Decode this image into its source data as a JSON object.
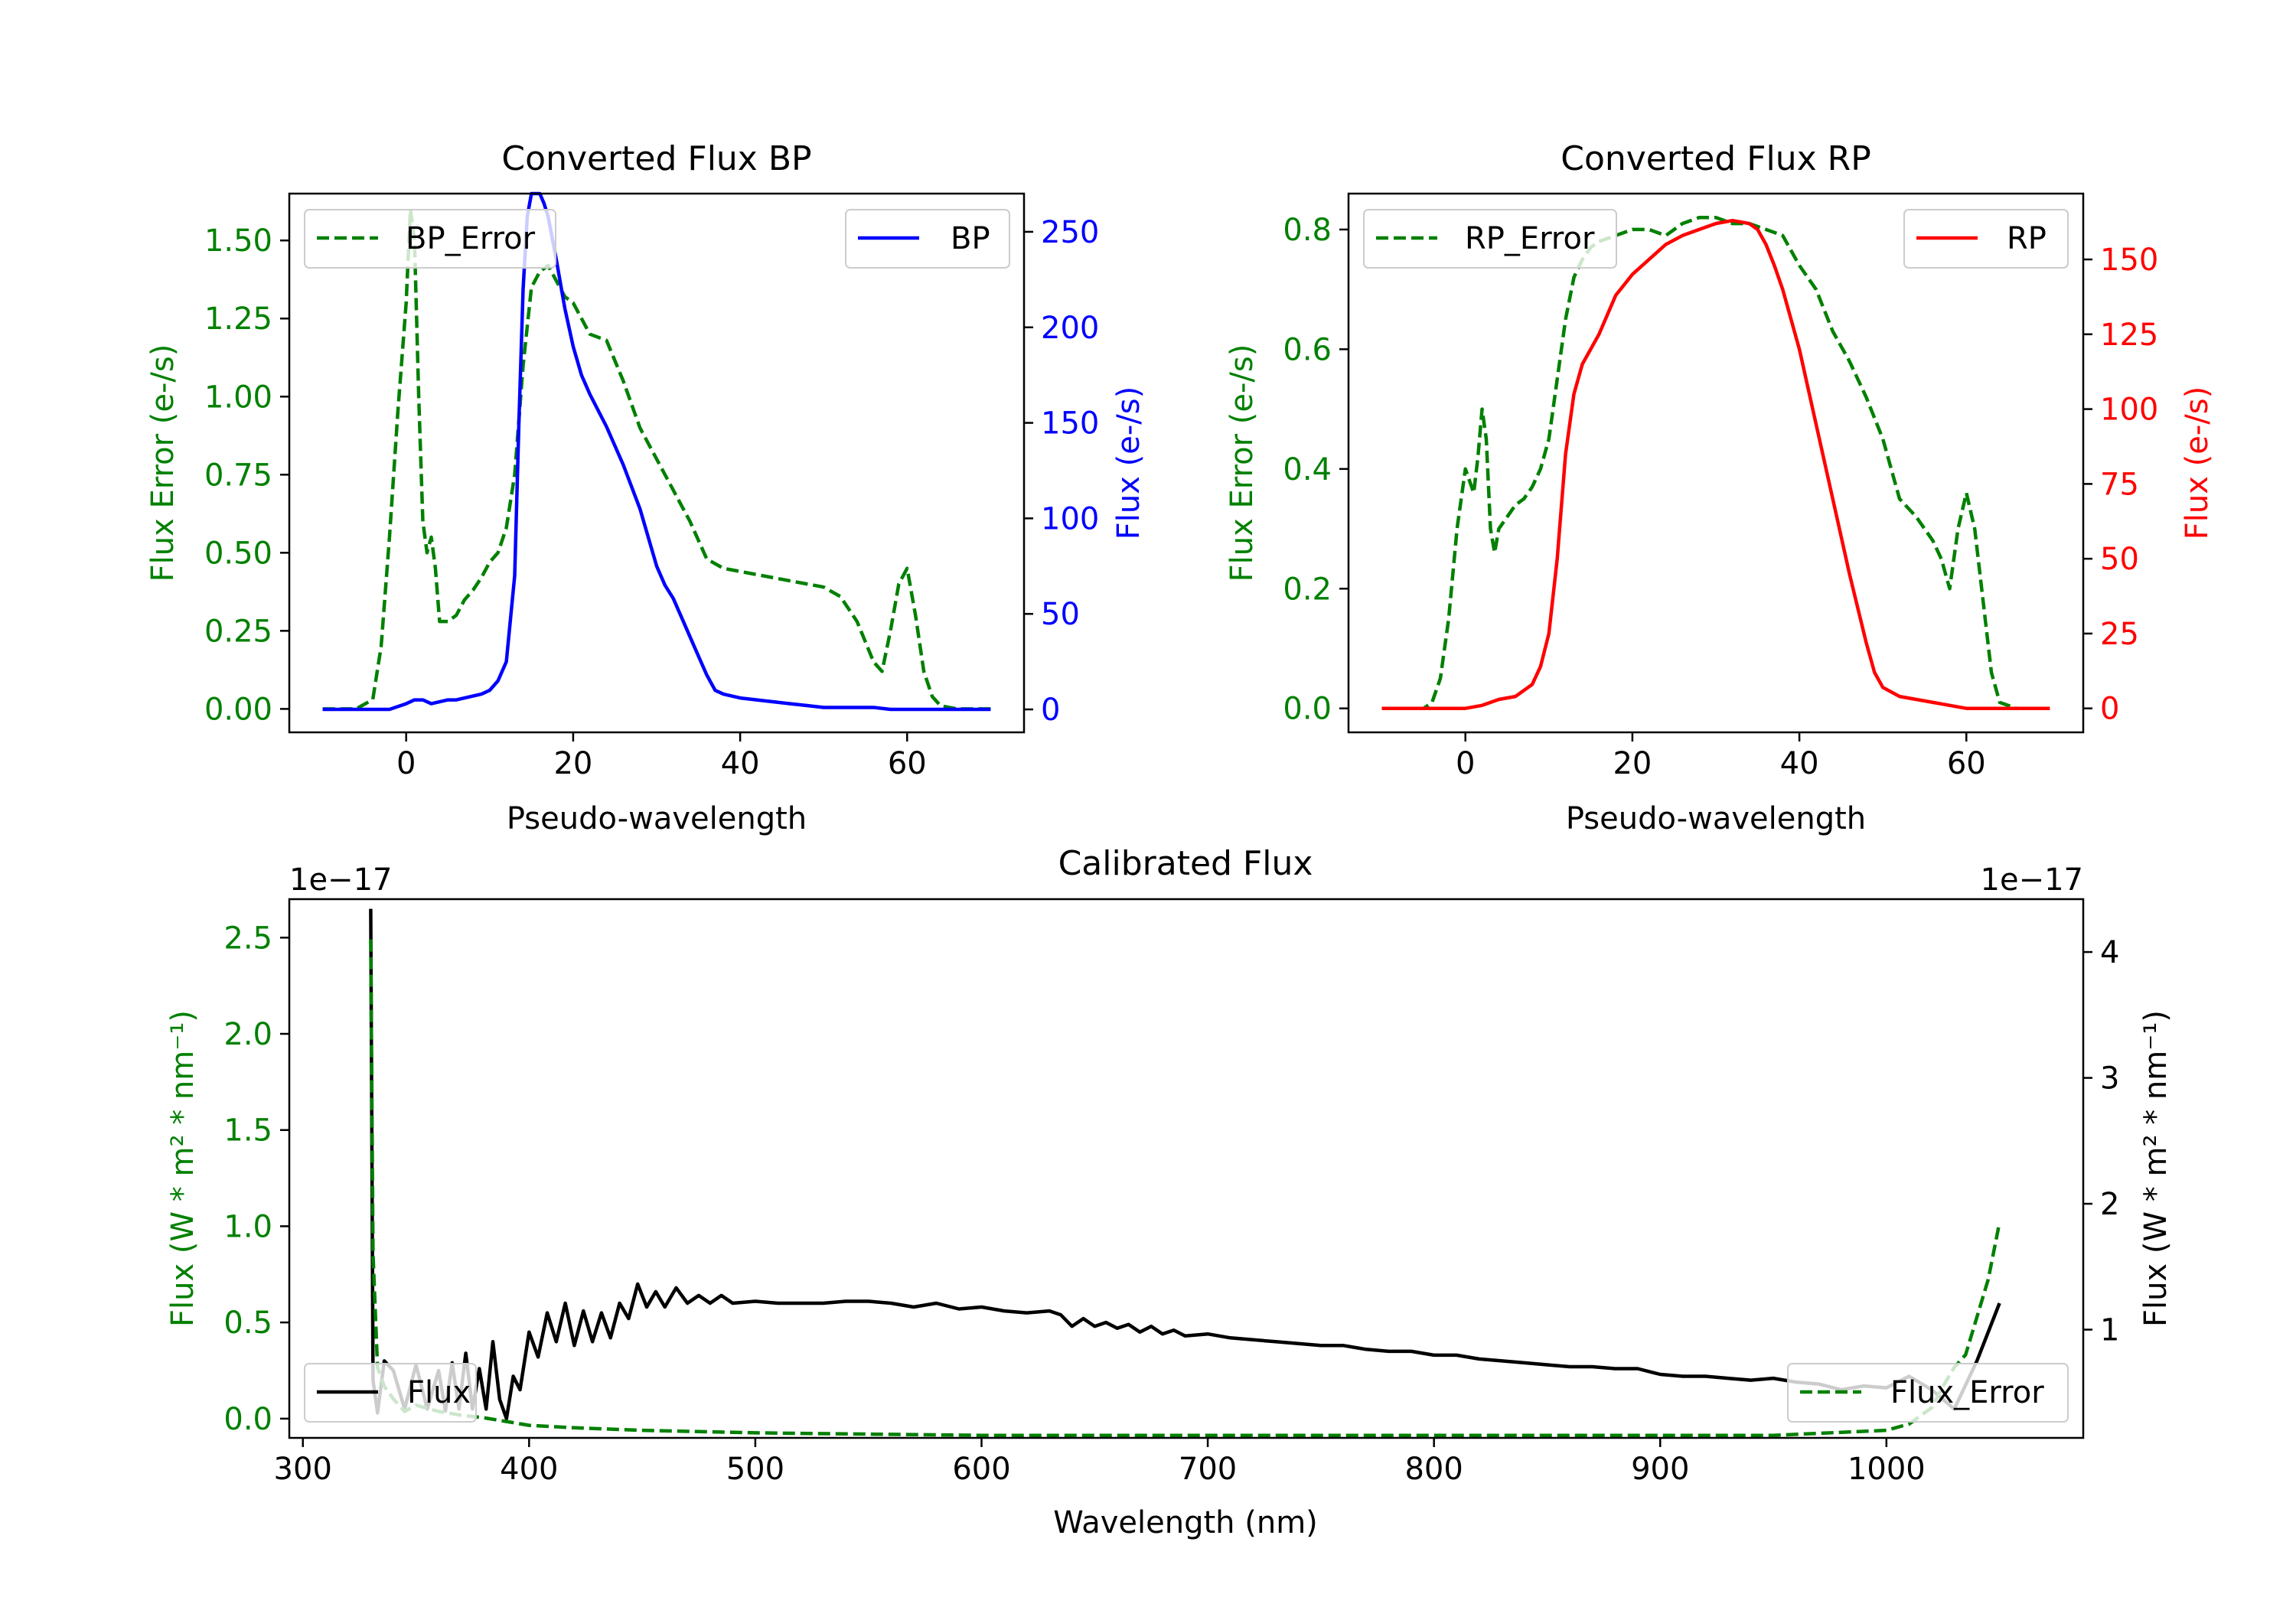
{
  "colors": {
    "green": "#008000",
    "blue": "#0000ff",
    "red": "#ff0000",
    "black": "#000000"
  },
  "chart_data": [
    {
      "id": "bp",
      "type": "line",
      "title": "Converted Flux BP",
      "xlabel": "Pseudo-wavelength",
      "ylabel_left": "Flux Error (e-/s)",
      "ylabel_right": "Flux (e-/s)",
      "xlim": [
        -14,
        74
      ],
      "ylim_left": [
        -0.075,
        1.65
      ],
      "ylim_right": [
        -12,
        270
      ],
      "xticks": [
        0,
        20,
        40,
        60
      ],
      "xtick_labels": [
        "0",
        "20",
        "40",
        "60"
      ],
      "yticks_left": [
        0,
        0.25,
        0.5,
        0.75,
        1.0,
        1.25,
        1.5
      ],
      "ytick_labels_left": [
        "0.00",
        "0.25",
        "0.50",
        "0.75",
        "1.00",
        "1.25",
        "1.50"
      ],
      "yticks_right": [
        0,
        50,
        100,
        150,
        200,
        250
      ],
      "ytick_labels_right": [
        "0",
        "50",
        "100",
        "150",
        "200",
        "250"
      ],
      "series": [
        {
          "name": "BP_Error",
          "axis": "left",
          "style": "dashed",
          "color": "#008000",
          "x": [
            -10,
            -6,
            -4,
            -3,
            -2,
            -1,
            0,
            0.5,
            1,
            1.5,
            2,
            2.5,
            3,
            3.5,
            4,
            5,
            6,
            7,
            8,
            9,
            10,
            11,
            12,
            13,
            14,
            15,
            16,
            17,
            18,
            19,
            20,
            21,
            22,
            24,
            26,
            28,
            30,
            32,
            34,
            36,
            38,
            40,
            42,
            44,
            46,
            48,
            50,
            52,
            54,
            56,
            57,
            58,
            59,
            60,
            61,
            62,
            63,
            64,
            66,
            68,
            70
          ],
          "y": [
            0.0,
            0.0,
            0.03,
            0.2,
            0.55,
            0.95,
            1.3,
            1.6,
            1.5,
            1.0,
            0.6,
            0.5,
            0.55,
            0.45,
            0.28,
            0.28,
            0.3,
            0.35,
            0.38,
            0.42,
            0.47,
            0.5,
            0.58,
            0.75,
            1.1,
            1.35,
            1.4,
            1.42,
            1.37,
            1.32,
            1.3,
            1.25,
            1.2,
            1.18,
            1.05,
            0.9,
            0.8,
            0.7,
            0.6,
            0.48,
            0.45,
            0.44,
            0.43,
            0.42,
            0.41,
            0.4,
            0.39,
            0.36,
            0.28,
            0.15,
            0.12,
            0.25,
            0.4,
            0.45,
            0.3,
            0.12,
            0.04,
            0.01,
            0.0,
            0.0,
            0.0
          ]
        },
        {
          "name": "BP",
          "axis": "right",
          "style": "solid",
          "color": "#0000ff",
          "x": [
            -10,
            -4,
            -2,
            0,
            1,
            2,
            3,
            4,
            5,
            6,
            7,
            8,
            9,
            10,
            11,
            12,
            13,
            13.5,
            14,
            14.5,
            15,
            16,
            16.5,
            17,
            18,
            19,
            20,
            21,
            22,
            24,
            26,
            28,
            29,
            30,
            31,
            32,
            33,
            34,
            35,
            36,
            37,
            38,
            40,
            42,
            44,
            46,
            48,
            50,
            52,
            54,
            56,
            58,
            60,
            62,
            64,
            66,
            68,
            70
          ],
          "y": [
            0,
            0,
            0,
            3,
            5,
            5,
            3,
            4,
            5,
            5,
            6,
            7,
            8,
            10,
            15,
            25,
            70,
            150,
            220,
            258,
            270,
            270,
            265,
            258,
            235,
            210,
            190,
            175,
            165,
            148,
            128,
            105,
            90,
            75,
            65,
            58,
            48,
            38,
            28,
            18,
            10,
            8,
            6,
            5,
            4,
            3,
            2,
            1,
            1,
            1,
            1,
            0,
            0,
            0,
            0,
            0,
            0,
            0
          ]
        }
      ],
      "legend": [
        {
          "label": "BP_Error",
          "position": "upper-left"
        },
        {
          "label": "BP",
          "position": "upper-right"
        }
      ]
    },
    {
      "id": "rp",
      "type": "line",
      "title": "Converted Flux RP",
      "xlabel": "Pseudo-wavelength",
      "ylabel_left": "Flux Error (e-/s)",
      "ylabel_right": "Flux (e-/s)",
      "xlim": [
        -14,
        74
      ],
      "ylim_left": [
        -0.04,
        0.86
      ],
      "ylim_right": [
        -8,
        172
      ],
      "xticks": [
        0,
        20,
        40,
        60
      ],
      "xtick_labels": [
        "0",
        "20",
        "40",
        "60"
      ],
      "yticks_left": [
        0,
        0.2,
        0.4,
        0.6,
        0.8
      ],
      "ytick_labels_left": [
        "0.0",
        "0.2",
        "0.4",
        "0.6",
        "0.8"
      ],
      "yticks_right": [
        0,
        25,
        50,
        75,
        100,
        125,
        150
      ],
      "ytick_labels_right": [
        "0",
        "25",
        "50",
        "75",
        "100",
        "125",
        "150"
      ],
      "series": [
        {
          "name": "RP_Error",
          "axis": "left",
          "style": "dashed",
          "color": "#008000",
          "x": [
            -10,
            -5,
            -4,
            -3,
            -2,
            -1,
            0,
            0.5,
            1,
            1.5,
            2,
            2.5,
            3,
            3.5,
            4,
            5,
            6,
            7,
            8,
            9,
            10,
            11,
            12,
            13,
            14,
            15,
            16,
            18,
            20,
            22,
            24,
            26,
            28,
            30,
            32,
            34,
            36,
            38,
            40,
            42,
            44,
            46,
            48,
            50,
            52,
            54,
            56,
            57,
            58,
            59,
            60,
            61,
            62,
            63,
            64,
            66,
            68,
            70
          ],
          "y": [
            0.0,
            0.0,
            0.01,
            0.05,
            0.15,
            0.3,
            0.4,
            0.38,
            0.36,
            0.42,
            0.5,
            0.45,
            0.3,
            0.26,
            0.3,
            0.32,
            0.34,
            0.35,
            0.37,
            0.4,
            0.45,
            0.55,
            0.65,
            0.72,
            0.75,
            0.77,
            0.78,
            0.79,
            0.8,
            0.8,
            0.79,
            0.81,
            0.82,
            0.82,
            0.81,
            0.81,
            0.8,
            0.79,
            0.74,
            0.7,
            0.63,
            0.58,
            0.52,
            0.45,
            0.35,
            0.32,
            0.28,
            0.25,
            0.2,
            0.3,
            0.36,
            0.3,
            0.18,
            0.06,
            0.01,
            0.0,
            0.0,
            0.0
          ]
        },
        {
          "name": "RP",
          "axis": "right",
          "style": "solid",
          "color": "#ff0000",
          "x": [
            -10,
            -4,
            -2,
            0,
            2,
            4,
            6,
            8,
            9,
            10,
            11,
            12,
            13,
            14,
            16,
            18,
            20,
            22,
            24,
            26,
            28,
            30,
            32,
            34,
            35,
            36,
            37,
            38,
            40,
            42,
            44,
            46,
            48,
            49,
            50,
            52,
            54,
            56,
            58,
            60,
            62,
            64,
            66,
            68,
            70
          ],
          "y": [
            0,
            0,
            0,
            0,
            1,
            3,
            4,
            8,
            14,
            25,
            50,
            85,
            105,
            115,
            125,
            138,
            145,
            150,
            155,
            158,
            160,
            162,
            163,
            162,
            160,
            155,
            148,
            140,
            120,
            95,
            70,
            45,
            22,
            12,
            7,
            4,
            3,
            2,
            1,
            0,
            0,
            0,
            0,
            0,
            0
          ]
        }
      ],
      "legend": [
        {
          "label": "RP_Error",
          "position": "upper-left"
        },
        {
          "label": "RP",
          "position": "upper-right"
        }
      ]
    },
    {
      "id": "cal",
      "type": "line",
      "title": "Calibrated Flux",
      "xlabel": "Wavelength (nm)",
      "ylabel_left": "Flux (W * m² * nm⁻¹)",
      "ylabel_right": "Flux (W * m² * nm⁻¹)",
      "offset_left": "1e−17",
      "offset_right": "1e−17",
      "xlim": [
        294,
        1087
      ],
      "ylim_left": [
        -0.1,
        2.7
      ],
      "ylim_right": [
        0.14,
        4.42
      ],
      "xticks": [
        300,
        400,
        500,
        600,
        700,
        800,
        900,
        1000
      ],
      "xtick_labels": [
        "300",
        "400",
        "500",
        "600",
        "700",
        "800",
        "900",
        "1000"
      ],
      "yticks_left": [
        0,
        0.5,
        1.0,
        1.5,
        2.0,
        2.5
      ],
      "ytick_labels_left": [
        "0.0",
        "0.5",
        "1.0",
        "1.5",
        "2.0",
        "2.5"
      ],
      "yticks_right": [
        1,
        2,
        3,
        4
      ],
      "ytick_labels_right": [
        "1",
        "2",
        "3",
        "4"
      ],
      "series": [
        {
          "name": "Flux",
          "axis": "left",
          "style": "solid",
          "color": "#000000",
          "x": [
            330,
            331,
            333,
            336,
            340,
            345,
            350,
            355,
            360,
            363,
            366,
            369,
            372,
            375,
            378,
            381,
            384,
            387,
            390,
            393,
            396,
            400,
            404,
            408,
            412,
            416,
            420,
            424,
            428,
            432,
            436,
            440,
            444,
            448,
            452,
            456,
            460,
            465,
            470,
            475,
            480,
            485,
            490,
            500,
            510,
            520,
            530,
            540,
            550,
            560,
            570,
            580,
            590,
            600,
            610,
            620,
            630,
            635,
            640,
            645,
            650,
            655,
            660,
            665,
            670,
            675,
            680,
            685,
            690,
            700,
            710,
            720,
            730,
            740,
            750,
            760,
            770,
            780,
            790,
            800,
            810,
            820,
            830,
            840,
            850,
            860,
            870,
            880,
            890,
            900,
            910,
            920,
            930,
            940,
            950,
            960,
            970,
            980,
            990,
            1000,
            1010,
            1020,
            1030,
            1040,
            1050
          ],
          "y": [
            2.65,
            0.2,
            0.03,
            0.3,
            0.25,
            0.05,
            0.28,
            0.05,
            0.25,
            0.04,
            0.29,
            0.05,
            0.34,
            0.05,
            0.26,
            0.05,
            0.4,
            0.1,
            0.0,
            0.22,
            0.15,
            0.45,
            0.32,
            0.55,
            0.4,
            0.6,
            0.38,
            0.56,
            0.4,
            0.55,
            0.42,
            0.6,
            0.52,
            0.7,
            0.58,
            0.66,
            0.58,
            0.68,
            0.6,
            0.64,
            0.6,
            0.64,
            0.6,
            0.61,
            0.6,
            0.6,
            0.6,
            0.61,
            0.61,
            0.6,
            0.58,
            0.6,
            0.57,
            0.58,
            0.56,
            0.55,
            0.56,
            0.54,
            0.48,
            0.52,
            0.48,
            0.5,
            0.47,
            0.49,
            0.45,
            0.48,
            0.44,
            0.46,
            0.43,
            0.44,
            0.42,
            0.41,
            0.4,
            0.39,
            0.38,
            0.38,
            0.36,
            0.35,
            0.35,
            0.33,
            0.33,
            0.31,
            0.3,
            0.29,
            0.28,
            0.27,
            0.27,
            0.26,
            0.26,
            0.23,
            0.22,
            0.22,
            0.21,
            0.2,
            0.21,
            0.19,
            0.18,
            0.15,
            0.17,
            0.16,
            0.22,
            0.15,
            0.05,
            0.3,
            0.6
          ]
        },
        {
          "name": "Flux_Error",
          "axis": "right",
          "style": "dashed",
          "color": "#008000",
          "x": [
            330,
            331,
            333,
            336,
            340,
            345,
            350,
            360,
            370,
            380,
            390,
            400,
            420,
            450,
            500,
            550,
            600,
            650,
            700,
            750,
            800,
            850,
            900,
            950,
            1000,
            1010,
            1020,
            1025,
            1030,
            1035,
            1040,
            1045,
            1050
          ],
          "y": [
            4.1,
            1.6,
            0.7,
            0.55,
            0.45,
            0.35,
            0.4,
            0.35,
            0.32,
            0.3,
            0.27,
            0.24,
            0.22,
            0.2,
            0.18,
            0.17,
            0.16,
            0.16,
            0.16,
            0.16,
            0.16,
            0.16,
            0.16,
            0.16,
            0.2,
            0.25,
            0.38,
            0.55,
            0.7,
            0.8,
            1.1,
            1.4,
            1.85
          ]
        }
      ],
      "legend": [
        {
          "label": "Flux",
          "position": "lower-left"
        },
        {
          "label": "Flux_Error",
          "position": "lower-right"
        }
      ]
    }
  ]
}
